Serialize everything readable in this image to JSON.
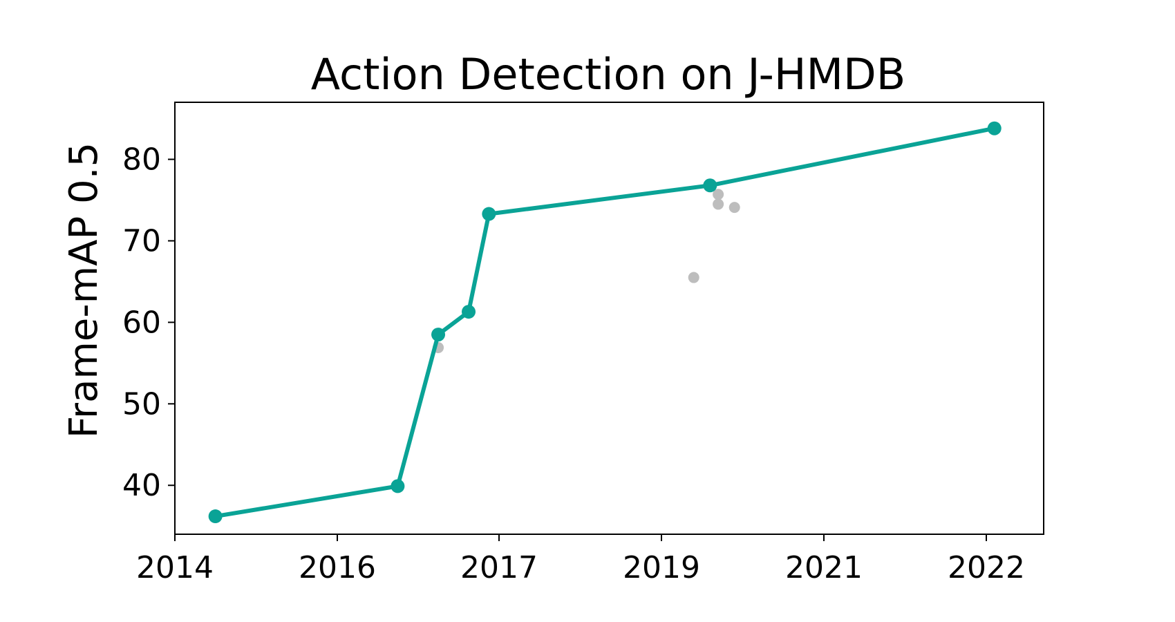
{
  "chart_data": {
    "type": "line",
    "title": "Action Detection on J-HMDB",
    "xlabel": "",
    "ylabel": "Frame-mAP 0.5",
    "x_ticks": [
      "2014",
      "2016",
      "2017",
      "2019",
      "2021",
      "2022"
    ],
    "y_ticks": [
      40,
      50,
      60,
      70,
      80
    ],
    "ylim": [
      34,
      87
    ],
    "grid": false,
    "legend": "none",
    "colors": {
      "sota": "#0aa396",
      "other": "#bdbdbd",
      "axis": "#000000"
    },
    "series": [
      {
        "role": "state-of-the-art",
        "style": "line-markers",
        "points": [
          {
            "x": "2014-06",
            "y": 36.2
          },
          {
            "x": "2016-03",
            "y": 39.9
          },
          {
            "x": "2016-07",
            "y": 58.5
          },
          {
            "x": "2016-10",
            "y": 61.3
          },
          {
            "x": "2016-12",
            "y": 73.3
          },
          {
            "x": "2019-03",
            "y": 76.8
          },
          {
            "x": "2022-02",
            "y": 83.8
          }
        ]
      },
      {
        "role": "other",
        "style": "markers",
        "points": [
          {
            "x": "2016-07",
            "y": 56.9
          },
          {
            "x": "2019-01",
            "y": 65.5
          },
          {
            "x": "2019-04",
            "y": 75.7
          },
          {
            "x": "2019-04",
            "y": 74.5
          },
          {
            "x": "2019-06",
            "y": 74.1
          }
        ]
      }
    ]
  }
}
